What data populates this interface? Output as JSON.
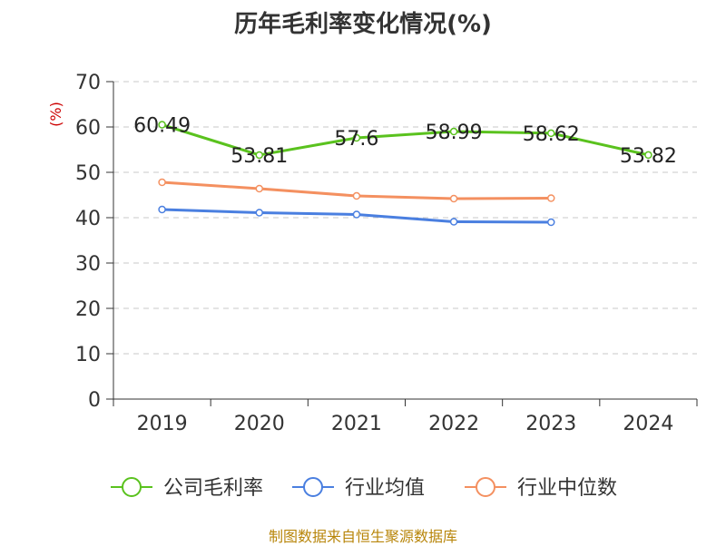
{
  "chart_data": {
    "type": "line",
    "title": "历年毛利率变化情况(%)",
    "ylabel": "(%)",
    "xlabel": "",
    "categories": [
      "2019",
      "2020",
      "2021",
      "2022",
      "2023",
      "2024"
    ],
    "ylim": [
      0,
      70
    ],
    "yticks": [
      "0",
      "10",
      "20",
      "30",
      "40",
      "50",
      "60",
      "70"
    ],
    "grid": true,
    "legend_position": "bottom",
    "series": [
      {
        "name": "公司毛利率",
        "color": "#5ac21e",
        "values": [
          60.49,
          53.81,
          57.6,
          58.99,
          58.62,
          53.82
        ],
        "labels": [
          "60.49",
          "53.81",
          "57.6",
          "58.99",
          "58.62",
          "53.82"
        ]
      },
      {
        "name": "行业均值",
        "color": "#4a7fe0",
        "values": [
          41.8,
          41.1,
          40.7,
          39.1,
          39.0,
          null
        ]
      },
      {
        "name": "行业中位数",
        "color": "#f49060",
        "values": [
          47.8,
          46.4,
          44.8,
          44.2,
          44.3,
          null
        ]
      }
    ],
    "source": "制图数据来自恒生聚源数据库"
  }
}
